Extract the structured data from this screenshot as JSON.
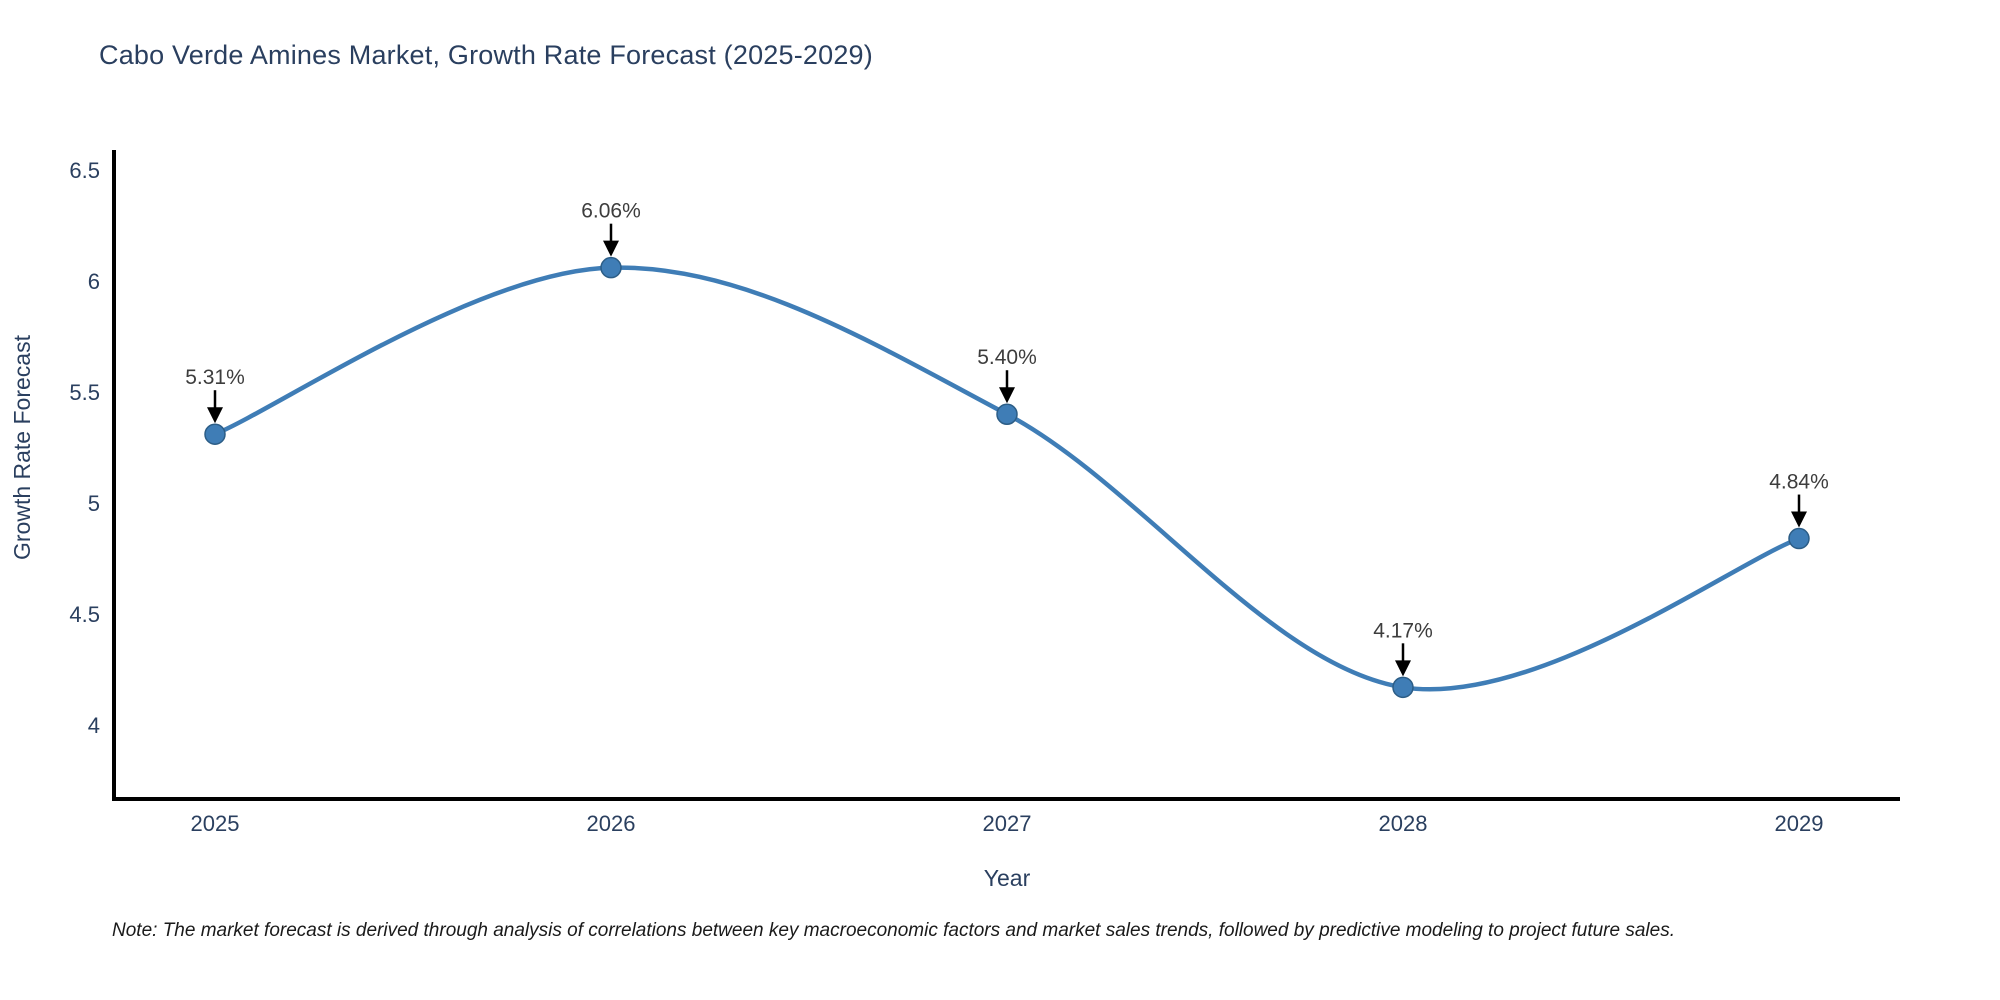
{
  "title": "Cabo Verde Amines Market, Growth Rate Forecast (2025-2029)",
  "note": "Note: The market forecast is derived through analysis of correlations between key macroeconomic factors and market sales trends, followed by predictive modeling to project future sales.",
  "chart_data": {
    "type": "line",
    "title": "Cabo Verde Amines Market, Growth Rate Forecast (2025-2029)",
    "x": [
      "2025",
      "2026",
      "2027",
      "2028",
      "2029"
    ],
    "series": [
      {
        "name": "Growth Rate Forecast",
        "values": [
          5.31,
          6.06,
          5.4,
          4.17,
          4.84
        ]
      }
    ],
    "point_labels": [
      "5.31%",
      "6.06%",
      "5.40%",
      "4.17%",
      "4.84%"
    ],
    "xlabel": "Year",
    "ylabel": "Growth Rate Forecast",
    "yticks": [
      4,
      4.5,
      5,
      5.5,
      6,
      6.5
    ],
    "ylim": [
      3.667,
      6.59
    ],
    "line_shape": "spline",
    "grid": false,
    "legend": "none",
    "colors": {
      "line": "#3f7db6",
      "marker": "#3f7db6",
      "marker_edge": "#2c5d86",
      "arrow": "#000000",
      "axis": "#000000",
      "title": "#2a3f5f",
      "tick": "#2a3f5f",
      "axis_title": "#2a3f5f",
      "annotation": "#3d3d3d",
      "note": "#1a1a1a"
    }
  }
}
